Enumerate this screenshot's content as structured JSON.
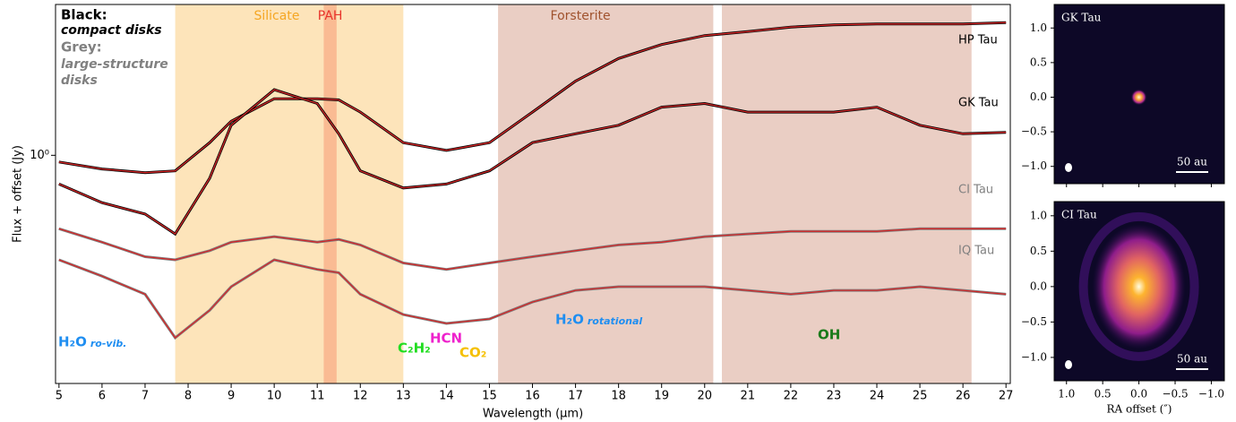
{
  "chart_data": [
    {
      "type": "line",
      "x_label": "Wavelength (μm)",
      "y_label": "Flux + offset (Jy)",
      "log_y": true,
      "xlim": [
        4.92,
        27.1
      ],
      "ylim": [
        0.25,
        2.5
      ],
      "xticks": [
        5,
        6,
        7,
        8,
        9,
        10,
        11,
        12,
        13,
        14,
        15,
        16,
        17,
        18,
        19,
        20,
        21,
        22,
        23,
        24,
        25,
        26,
        27
      ],
      "yticks": [
        {
          "value": 1,
          "label": "10⁰"
        }
      ],
      "x": [
        5,
        6,
        7,
        7.7,
        8.5,
        9,
        10,
        11,
        11.5,
        12,
        13,
        14,
        15,
        16,
        17,
        18,
        19,
        20,
        21,
        22,
        23,
        24,
        25,
        26,
        27
      ],
      "series": [
        {
          "name": "HP Tau",
          "color": "#000000",
          "model_color": "#d62728",
          "values": [
            0.96,
            0.92,
            0.9,
            0.91,
            1.08,
            1.23,
            1.41,
            1.41,
            1.4,
            1.3,
            1.08,
            1.03,
            1.08,
            1.3,
            1.57,
            1.8,
            1.96,
            2.07,
            2.12,
            2.18,
            2.21,
            2.22,
            2.22,
            2.22,
            2.24
          ]
        },
        {
          "name": "GK Tau",
          "color": "#000000",
          "model_color": "#d62728",
          "values": [
            0.84,
            0.75,
            0.7,
            0.62,
            0.87,
            1.2,
            1.49,
            1.37,
            1.14,
            0.91,
            0.82,
            0.84,
            0.91,
            1.08,
            1.14,
            1.2,
            1.34,
            1.37,
            1.3,
            1.3,
            1.3,
            1.34,
            1.2,
            1.14,
            1.15
          ]
        },
        {
          "name": "CI Tau",
          "color": "#808080",
          "model_color": "#d62728",
          "values": [
            0.64,
            0.59,
            0.54,
            0.53,
            0.56,
            0.59,
            0.61,
            0.59,
            0.6,
            0.58,
            0.52,
            0.5,
            0.52,
            0.54,
            0.56,
            0.58,
            0.59,
            0.61,
            0.62,
            0.63,
            0.63,
            0.63,
            0.64,
            0.64,
            0.64
          ]
        },
        {
          "name": "IQ Tau",
          "color": "#808080",
          "model_color": "#d62728",
          "values": [
            0.53,
            0.48,
            0.43,
            0.33,
            0.39,
            0.45,
            0.53,
            0.5,
            0.49,
            0.43,
            0.38,
            0.36,
            0.37,
            0.41,
            0.44,
            0.45,
            0.45,
            0.45,
            0.44,
            0.43,
            0.44,
            0.44,
            0.45,
            0.44,
            0.43
          ]
        }
      ],
      "regions": [
        {
          "label": "Silicate",
          "ranges": [
            [
              7.7,
              13.0
            ]
          ],
          "color": "#fddfae",
          "label_color": "#f5a623"
        },
        {
          "label": "PAH",
          "ranges": [
            [
              11.15,
              11.45
            ]
          ],
          "color": "#f9b48c",
          "label_color": "#e8322a"
        },
        {
          "label": "Forsterite",
          "ranges": [
            [
              15.2,
              20.2
            ],
            [
              20.4,
              26.2
            ]
          ],
          "color": "#e6c5ba",
          "label_color": "#a0522d"
        }
      ],
      "legend_text": [
        "Black:",
        "compact disks",
        "Grey:",
        "large-structure",
        "disks"
      ],
      "annotations": [
        {
          "text": "H₂O",
          "sub": "ro-vib.",
          "color": "#1f8ef1"
        },
        {
          "text": "C₂H₂",
          "color": "#22dd22"
        },
        {
          "text": "HCN",
          "color": "#ee22cc"
        },
        {
          "text": "CO₂",
          "color": "#f5c000"
        },
        {
          "text": "H₂O",
          "sub": "rotational",
          "color": "#1f8ef1"
        },
        {
          "text": "OH",
          "color": "#1a7a1a"
        }
      ]
    },
    {
      "type": "image",
      "title": "GK Tau",
      "scale_label": "50 au",
      "xlim": [
        1.17,
        -1.18
      ],
      "ylim": [
        -1.25,
        1.34
      ],
      "xticks": [
        1,
        0.5,
        0,
        -0.5,
        -1
      ],
      "yticks": [
        {
          "value": 1,
          "label": "1.0"
        },
        {
          "value": 0.5,
          "label": "0.5"
        },
        {
          "value": 0,
          "label": "0.0"
        },
        {
          "value": -0.5,
          "label": "−0.5"
        },
        {
          "value": -1,
          "label": "−1.0"
        }
      ]
    },
    {
      "type": "image",
      "title": "CI Tau",
      "scale_label": "50 au",
      "x_label": "RA offset  (″)",
      "xlim": [
        1.17,
        -1.18
      ],
      "ylim": [
        -1.33,
        1.2
      ],
      "xticks": [
        {
          "value": 1,
          "label": "1.0"
        },
        {
          "value": 0.5,
          "label": "0.5"
        },
        {
          "value": 0,
          "label": "0.0"
        },
        {
          "value": -0.5,
          "label": "−0.5"
        },
        {
          "value": -1,
          "label": "−1.0"
        }
      ],
      "yticks": [
        {
          "value": 1,
          "label": "1.0"
        },
        {
          "value": 0.5,
          "label": "0.5"
        },
        {
          "value": 0,
          "label": "0.0"
        },
        {
          "value": -0.5,
          "label": "−0.5"
        },
        {
          "value": -1,
          "label": "−1.0"
        }
      ]
    }
  ]
}
